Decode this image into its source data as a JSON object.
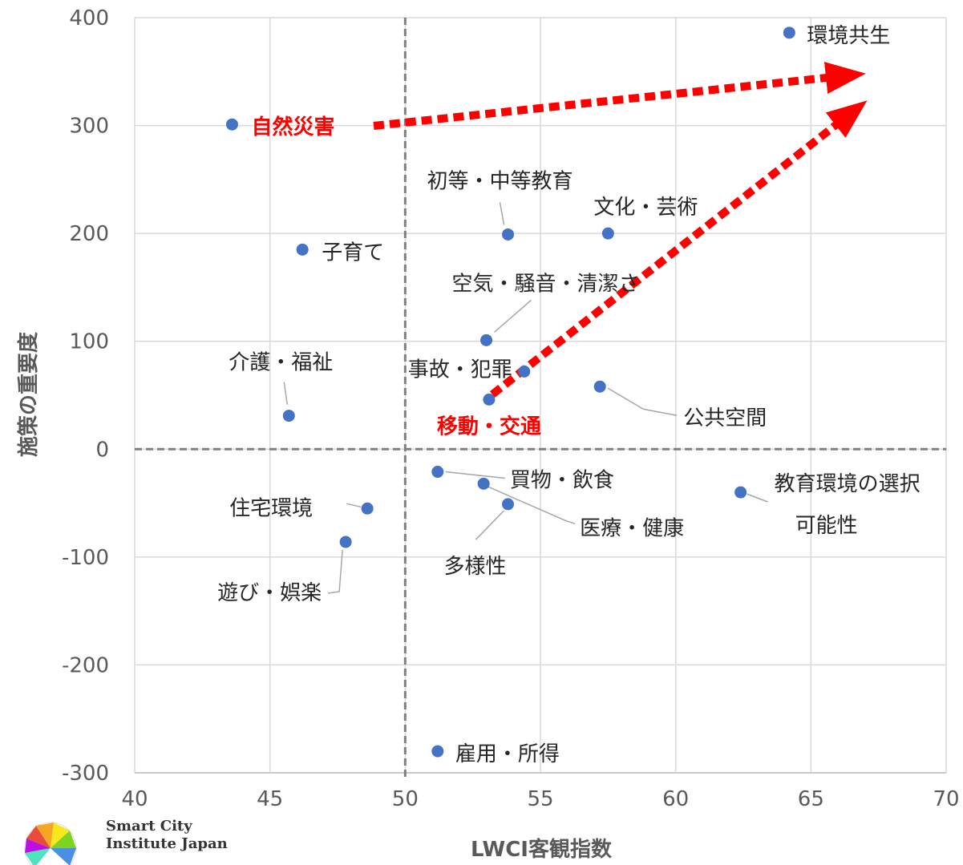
{
  "chart_data": {
    "type": "scatter",
    "title": "",
    "xlabel": "LWCI客観指数",
    "ylabel": "施策の重要度",
    "xlim": [
      40,
      70
    ],
    "ylim": [
      -300,
      400
    ],
    "xticks": [
      40,
      45,
      50,
      55,
      60,
      65,
      70
    ],
    "yticks": [
      -300,
      -200,
      -100,
      0,
      100,
      200,
      300,
      400
    ],
    "grid": true,
    "reference_lines": {
      "x": 50,
      "y": 0
    },
    "marker_color": "#4472c4",
    "highlight_color": "#ff0000",
    "points": [
      {
        "label": "環境共生",
        "x": 64.2,
        "y": 386
      },
      {
        "label": "自然災害",
        "x": 43.6,
        "y": 301,
        "highlight": true
      },
      {
        "label": "初等・中等教育",
        "x": 53.8,
        "y": 199
      },
      {
        "label": "文化・芸術",
        "x": 57.5,
        "y": 200
      },
      {
        "label": "子育て",
        "x": 46.2,
        "y": 185
      },
      {
        "label": "空気・騒音・清潔さ",
        "x": 53.0,
        "y": 101
      },
      {
        "label": "介護・福祉",
        "x": 45.7,
        "y": 31
      },
      {
        "label": "事故・犯罪",
        "x": 54.4,
        "y": 72
      },
      {
        "label": "公共空間",
        "x": 57.2,
        "y": 58
      },
      {
        "label": "移動・交通",
        "x": 53.1,
        "y": 46,
        "highlight": true
      },
      {
        "label": "買物・飲食",
        "x": 51.2,
        "y": -21
      },
      {
        "label": "教育環境の選択可能性",
        "line1": "教育環境の選択",
        "line2": "可能性",
        "x": 62.4,
        "y": -40
      },
      {
        "label": "住宅環境",
        "x": 48.6,
        "y": -55
      },
      {
        "label": "医療・健康",
        "x": 52.9,
        "y": -32
      },
      {
        "label": "多様性",
        "x": 53.8,
        "y": -51
      },
      {
        "label": "遊び・娯楽",
        "x": 47.8,
        "y": -86
      },
      {
        "label": "雇用・所得",
        "x": 51.2,
        "y": -280
      }
    ],
    "arrows": [
      {
        "from": "自然災害",
        "direction": "環境共生"
      },
      {
        "from": "移動・交通",
        "direction": "環境共生"
      }
    ]
  },
  "logo": {
    "line1": "Smart City",
    "line2": "Institute Japan"
  }
}
